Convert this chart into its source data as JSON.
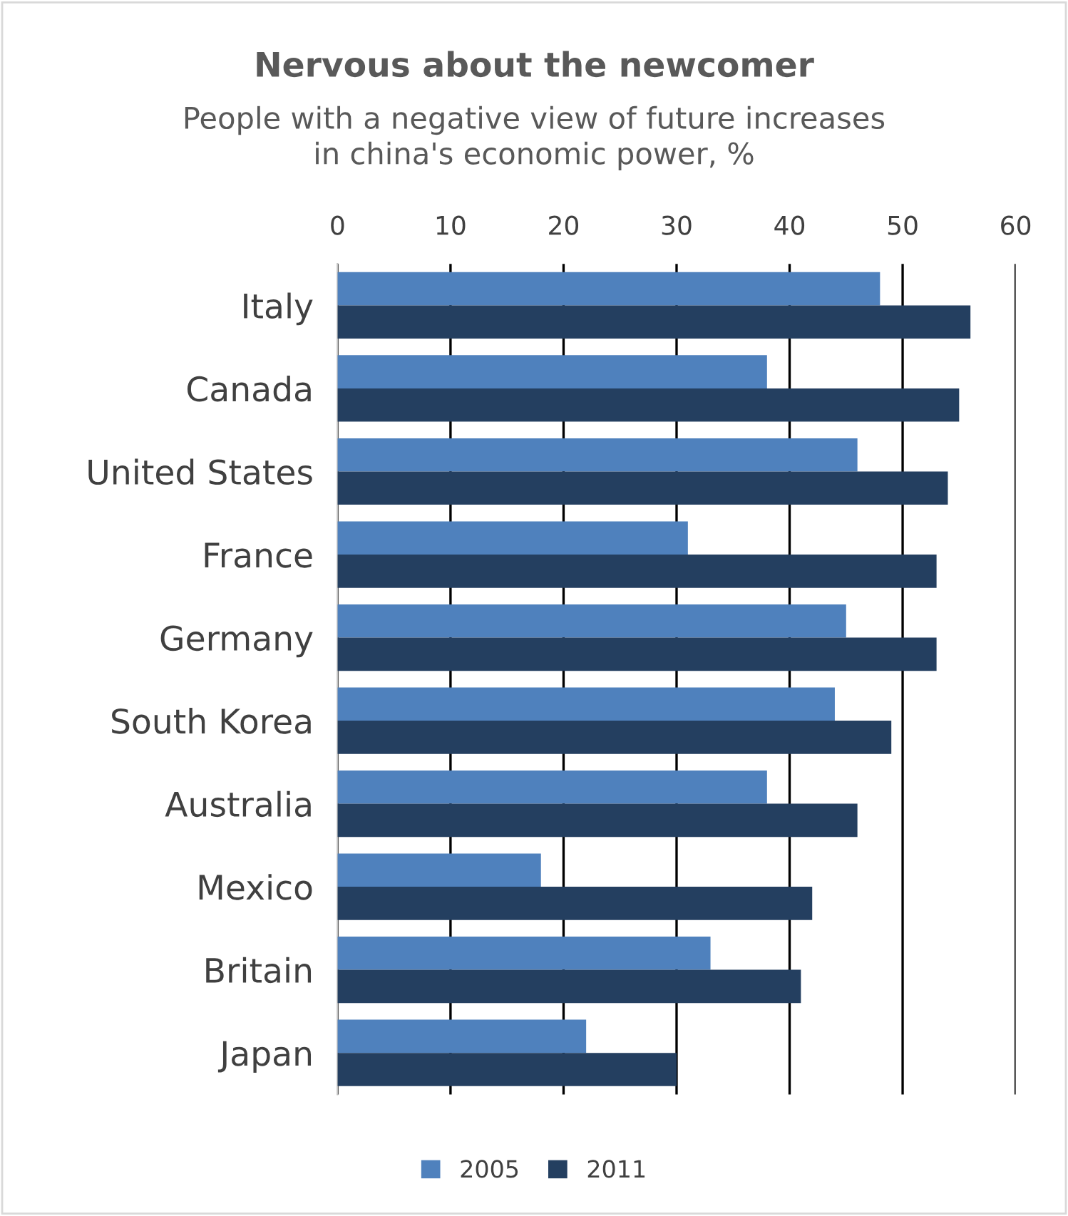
{
  "chart_data": {
    "type": "bar",
    "orientation": "horizontal",
    "title": "Nervous about the newcomer",
    "subtitle": "People with a negative view of future increases\nin china's economic power, %",
    "categories": [
      "Italy",
      "Canada",
      "United States",
      "France",
      "Germany",
      "South Korea",
      "Australia",
      "Mexico",
      "Britain",
      "Japan"
    ],
    "series": [
      {
        "name": "2005",
        "color": "#4f81bd",
        "values": [
          48,
          38,
          46,
          31,
          45,
          44,
          38,
          18,
          33,
          22
        ]
      },
      {
        "name": "2011",
        "color": "#243f60",
        "values": [
          56,
          55,
          54,
          53,
          53,
          49,
          46,
          42,
          41,
          30
        ]
      }
    ],
    "xlim": [
      0,
      60
    ],
    "xticks": [
      0,
      10,
      20,
      30,
      40,
      50,
      60
    ],
    "grid": "x",
    "legend": "bottom"
  }
}
